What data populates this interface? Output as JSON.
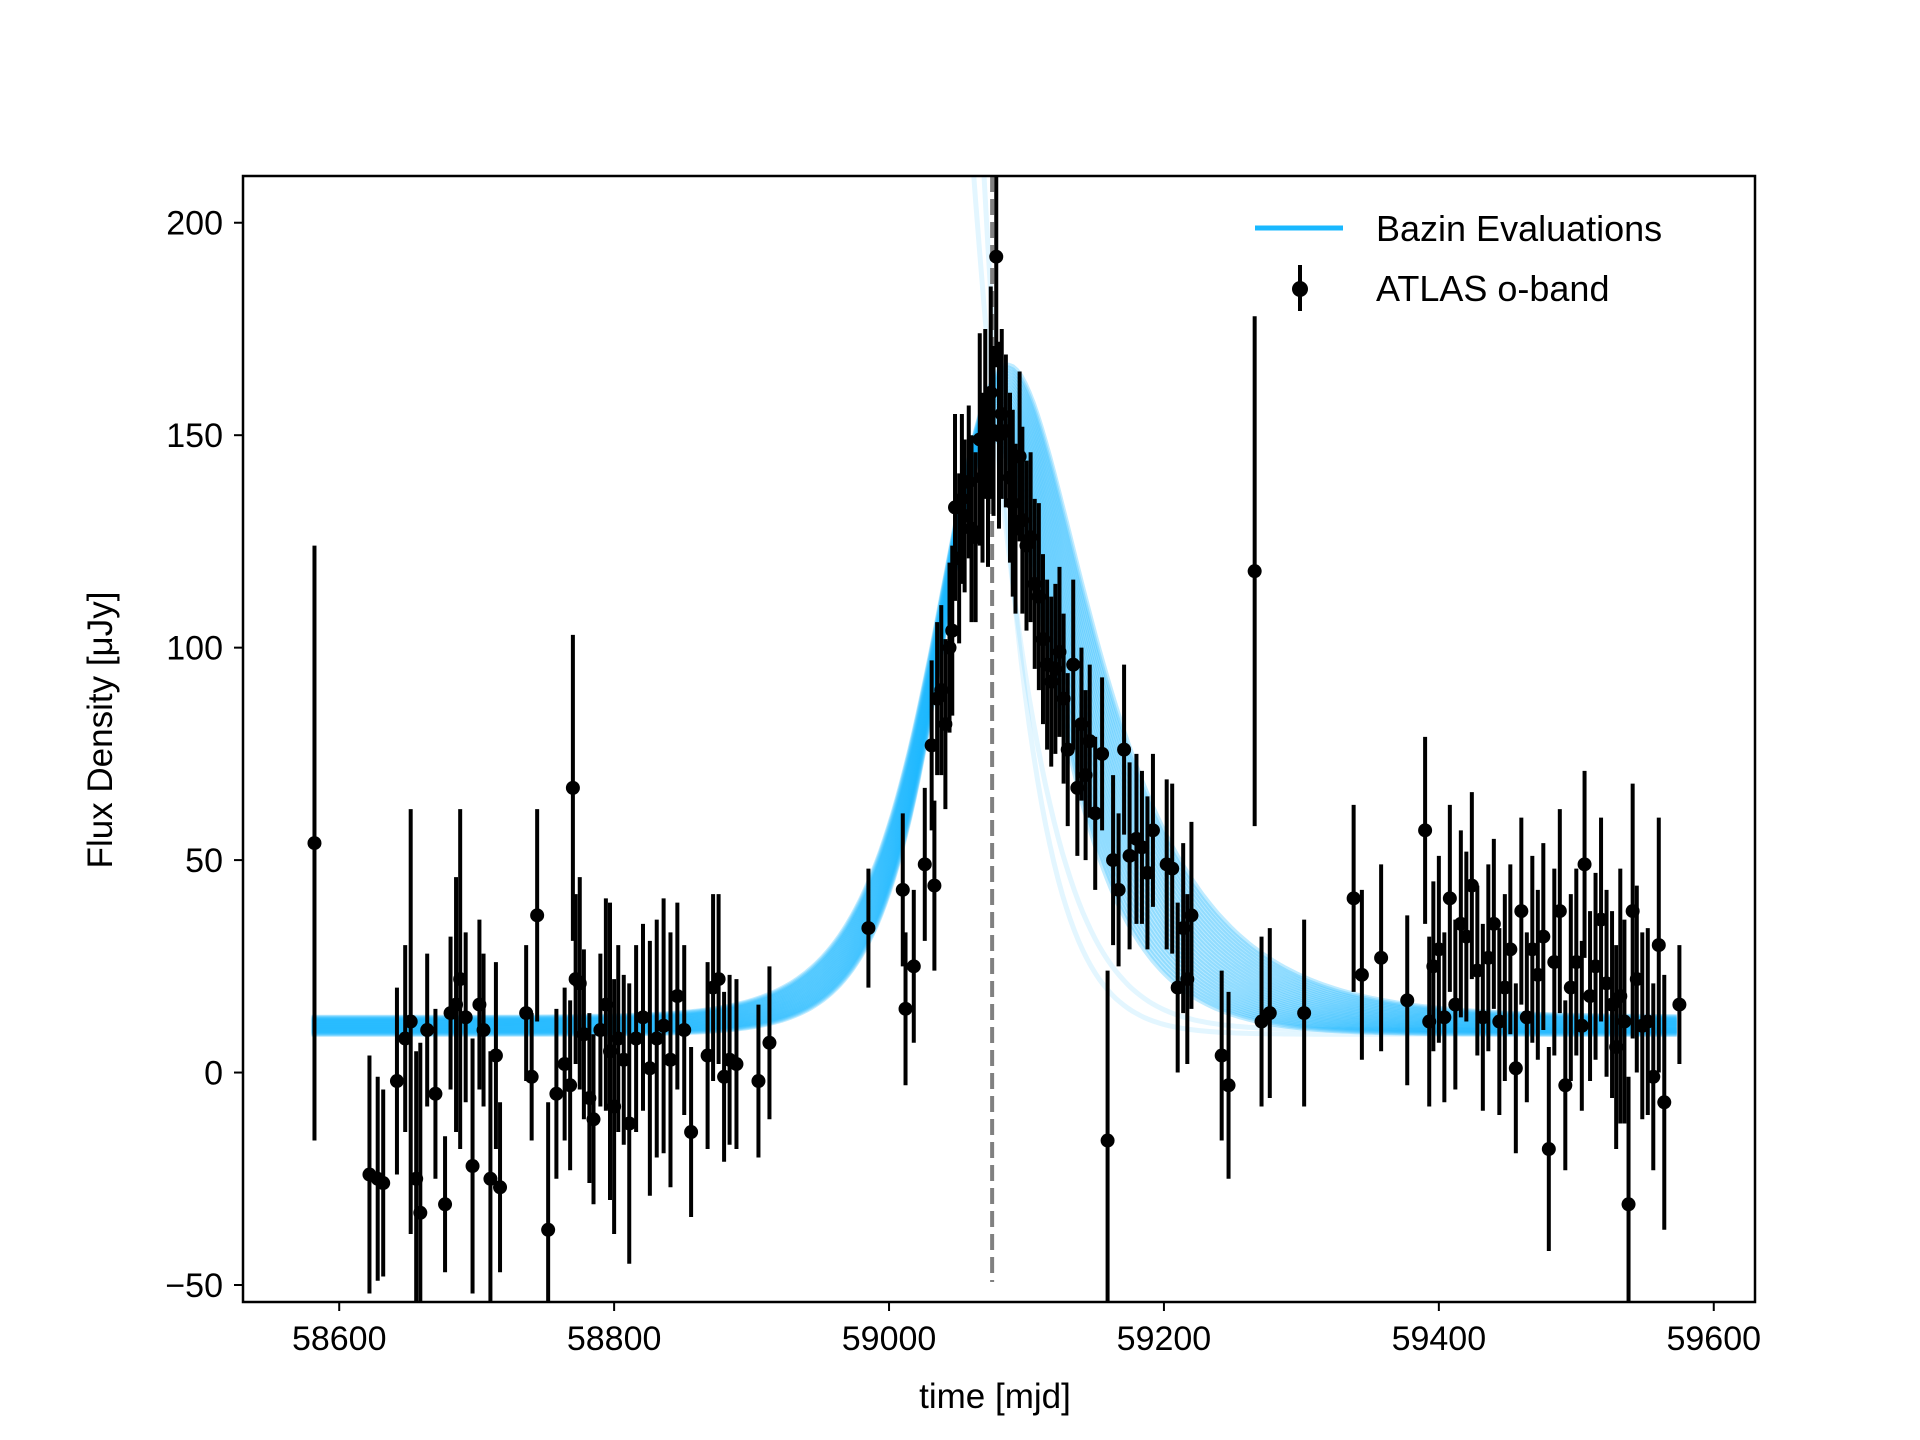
{
  "chart_data": {
    "type": "scatter",
    "title": "",
    "xlabel": "time [mjd]",
    "ylabel": "Flux Density [μJy]",
    "xlim": [
      58530,
      59630
    ],
    "ylim": [
      -54,
      211
    ],
    "xticks": [
      58600,
      58800,
      59000,
      59200,
      59400,
      59600
    ],
    "yticks": [
      -50,
      0,
      50,
      100,
      150,
      200
    ],
    "xtick_labels": [
      "58600",
      "58800",
      "59000",
      "59200",
      "59400",
      "59600"
    ],
    "ytick_labels": [
      "−50",
      "0",
      "50",
      "100",
      "150",
      "200"
    ],
    "grid": false,
    "legend_position": "top-right",
    "peak_time_marker": 59075,
    "colors": {
      "model": "#19b8ff",
      "data": "#000000",
      "peak_line": "#808080"
    },
    "series": [
      {
        "name": "Bazin Evaluations",
        "kind": "model-band",
        "baseline": 11,
        "peak": 155,
        "t0": 59072,
        "rise_tau": 22,
        "fall_tau": 55,
        "x_range": [
          58580,
          59575
        ],
        "outliers": [
          {
            "baseline": 10,
            "peak": 110,
            "t0": 59092,
            "rise_tau": 55,
            "fall_tau": 30
          },
          {
            "baseline": 9,
            "peak": 100,
            "t0": 59095,
            "rise_tau": 60,
            "fall_tau": 25
          }
        ]
      },
      {
        "name": "ATLAS o-band",
        "kind": "errorbar",
        "points": [
          [
            58582,
            54,
            70
          ],
          [
            58622,
            -24,
            28
          ],
          [
            58628,
            -25,
            24
          ],
          [
            58632,
            -26,
            22
          ],
          [
            58642,
            -2,
            22
          ],
          [
            58648,
            8,
            22
          ],
          [
            58652,
            12,
            50
          ],
          [
            58656,
            -25,
            30
          ],
          [
            58659,
            -33,
            40
          ],
          [
            58664,
            10,
            18
          ],
          [
            58670,
            -5,
            20
          ],
          [
            58677,
            -31,
            16
          ],
          [
            58681,
            14,
            18
          ],
          [
            58685,
            16,
            30
          ],
          [
            58688,
            22,
            40
          ],
          [
            58692,
            13,
            20
          ],
          [
            58697,
            -22,
            30
          ],
          [
            58702,
            16,
            20
          ],
          [
            58705,
            10,
            18
          ],
          [
            58710,
            -25,
            30
          ],
          [
            58714,
            4,
            22
          ],
          [
            58717,
            -27,
            20
          ],
          [
            58736,
            14,
            16
          ],
          [
            58740,
            -1,
            15
          ],
          [
            58744,
            37,
            25
          ],
          [
            58752,
            -37,
            30
          ],
          [
            58758,
            -5,
            20
          ],
          [
            58764,
            2,
            18
          ],
          [
            58768,
            -3,
            20
          ],
          [
            58770,
            67,
            36
          ],
          [
            58772,
            22,
            20
          ],
          [
            58775,
            21,
            25
          ],
          [
            58778,
            9,
            20
          ],
          [
            58782,
            -6,
            20
          ],
          [
            58785,
            -11,
            20
          ],
          [
            58790,
            10,
            18
          ],
          [
            58794,
            16,
            25
          ],
          [
            58797,
            5,
            35
          ],
          [
            58800,
            -8,
            30
          ],
          [
            58803,
            8,
            22
          ],
          [
            58807,
            3,
            20
          ],
          [
            58811,
            -12,
            33
          ],
          [
            58816,
            8,
            22
          ],
          [
            58821,
            13,
            22
          ],
          [
            58826,
            1,
            30
          ],
          [
            58831,
            8,
            28
          ],
          [
            58836,
            11,
            30
          ],
          [
            58841,
            3,
            30
          ],
          [
            58846,
            18,
            22
          ],
          [
            58851,
            10,
            20
          ],
          [
            58856,
            -14,
            20
          ],
          [
            58868,
            4,
            22
          ],
          [
            58872,
            20,
            22
          ],
          [
            58876,
            22,
            20
          ],
          [
            58880,
            -1,
            20
          ],
          [
            58884,
            3,
            20
          ],
          [
            58889,
            2,
            20
          ],
          [
            58905,
            -2,
            18
          ],
          [
            58913,
            7,
            18
          ],
          [
            58985,
            34,
            14
          ],
          [
            59010,
            43,
            18
          ],
          [
            59012,
            15,
            18
          ],
          [
            59018,
            25,
            18
          ],
          [
            59026,
            49,
            18
          ],
          [
            59031,
            77,
            20
          ],
          [
            59033,
            44,
            20
          ],
          [
            59035,
            88,
            18
          ],
          [
            59038,
            90,
            20
          ],
          [
            59041,
            82,
            20
          ],
          [
            59044,
            100,
            20
          ],
          [
            59046,
            104,
            20
          ],
          [
            59048,
            133,
            22
          ],
          [
            59051,
            121,
            20
          ],
          [
            59053,
            135,
            20
          ],
          [
            59055,
            131,
            18
          ],
          [
            59058,
            139,
            18
          ],
          [
            59060,
            128,
            22
          ],
          [
            59063,
            126,
            20
          ],
          [
            59066,
            149,
            25
          ],
          [
            59068,
            140,
            20
          ],
          [
            59070,
            155,
            20
          ],
          [
            59072,
            139,
            20
          ],
          [
            59074,
            160,
            25
          ],
          [
            59076,
            151,
            20
          ],
          [
            59078,
            192,
            26
          ],
          [
            59080,
            150,
            22
          ],
          [
            59082,
            155,
            20
          ],
          [
            59085,
            151,
            18
          ],
          [
            59088,
            140,
            20
          ],
          [
            59090,
            134,
            22
          ],
          [
            59092,
            128,
            20
          ],
          [
            59095,
            145,
            20
          ],
          [
            59097,
            130,
            22
          ],
          [
            59100,
            124,
            20
          ],
          [
            59103,
            126,
            20
          ],
          [
            59106,
            115,
            20
          ],
          [
            59109,
            112,
            22
          ],
          [
            59112,
            102,
            20
          ],
          [
            59115,
            96,
            20
          ],
          [
            59118,
            92,
            20
          ],
          [
            59121,
            95,
            20
          ],
          [
            59124,
            99,
            20
          ],
          [
            59127,
            88,
            20
          ],
          [
            59130,
            76,
            18
          ],
          [
            59134,
            96,
            20
          ],
          [
            59137,
            67,
            16
          ],
          [
            59140,
            82,
            18
          ],
          [
            59143,
            70,
            20
          ],
          [
            59146,
            78,
            18
          ],
          [
            59150,
            61,
            18
          ],
          [
            59155,
            75,
            18
          ],
          [
            59159,
            -16,
            40
          ],
          [
            59163,
            50,
            20
          ],
          [
            59167,
            43,
            18
          ],
          [
            59171,
            76,
            20
          ],
          [
            59175,
            51,
            22
          ],
          [
            59180,
            55,
            20
          ],
          [
            59184,
            53,
            18
          ],
          [
            59188,
            47,
            18
          ],
          [
            59192,
            57,
            18
          ],
          [
            59202,
            49,
            20
          ],
          [
            59206,
            48,
            20
          ],
          [
            59210,
            20,
            20
          ],
          [
            59214,
            34,
            20
          ],
          [
            59217,
            22,
            20
          ],
          [
            59220,
            37,
            22
          ],
          [
            59242,
            4,
            20
          ],
          [
            59247,
            -3,
            22
          ],
          [
            59266,
            118,
            60
          ],
          [
            59271,
            12,
            20
          ],
          [
            59277,
            14,
            20
          ],
          [
            59302,
            14,
            22
          ],
          [
            59338,
            41,
            22
          ],
          [
            59344,
            23,
            20
          ],
          [
            59358,
            27,
            22
          ],
          [
            59377,
            17,
            20
          ],
          [
            59390,
            57,
            22
          ],
          [
            59393,
            12,
            20
          ],
          [
            59396,
            25,
            20
          ],
          [
            59400,
            29,
            22
          ],
          [
            59404,
            13,
            20
          ],
          [
            59408,
            41,
            22
          ],
          [
            59412,
            16,
            20
          ],
          [
            59416,
            35,
            22
          ],
          [
            59420,
            32,
            20
          ],
          [
            59424,
            44,
            22
          ],
          [
            59428,
            24,
            20
          ],
          [
            59432,
            13,
            22
          ],
          [
            59436,
            27,
            22
          ],
          [
            59440,
            35,
            20
          ],
          [
            59444,
            12,
            22
          ],
          [
            59448,
            20,
            22
          ],
          [
            59452,
            29,
            20
          ],
          [
            59456,
            1,
            20
          ],
          [
            59460,
            38,
            22
          ],
          [
            59464,
            13,
            20
          ],
          [
            59468,
            29,
            22
          ],
          [
            59472,
            23,
            20
          ],
          [
            59476,
            32,
            22
          ],
          [
            59480,
            -18,
            24
          ],
          [
            59484,
            26,
            22
          ],
          [
            59488,
            38,
            24
          ],
          [
            59492,
            -3,
            20
          ],
          [
            59496,
            20,
            22
          ],
          [
            59500,
            26,
            22
          ],
          [
            59504,
            11,
            20
          ],
          [
            59506,
            49,
            22
          ],
          [
            59510,
            18,
            20
          ],
          [
            59514,
            25,
            22
          ],
          [
            59518,
            36,
            24
          ],
          [
            59522,
            21,
            22
          ],
          [
            59526,
            16,
            22
          ],
          [
            59529,
            6,
            24
          ],
          [
            59532,
            18,
            30
          ],
          [
            59535,
            12,
            24
          ],
          [
            59538,
            -31,
            30
          ],
          [
            59541,
            38,
            30
          ],
          [
            59544,
            22,
            22
          ],
          [
            59548,
            11,
            22
          ],
          [
            59552,
            12,
            22
          ],
          [
            59556,
            -1,
            22
          ],
          [
            59560,
            30,
            30
          ],
          [
            59564,
            -7,
            30
          ],
          [
            59575,
            16,
            14
          ]
        ]
      }
    ]
  }
}
